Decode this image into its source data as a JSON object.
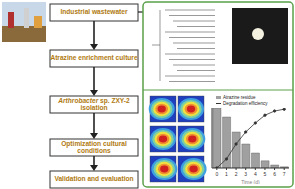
{
  "flow": {
    "steps": [
      {
        "text": "Industrial wastewater"
      },
      {
        "text": "Atrazine enrichment culture"
      },
      {
        "italic": "Arthrobacter",
        "text": " sp. ZXY-2 isolation"
      },
      {
        "text": "Optimization cultural conditions"
      },
      {
        "text": "Validation and evaluation"
      }
    ]
  },
  "chart_data": {
    "type": "bar",
    "x_label": "Time (d)",
    "categories": [
      "0",
      "1",
      "2",
      "3",
      "4",
      "5",
      "6",
      "7"
    ],
    "series": [
      {
        "name": "Atrazine residue",
        "type": "bar",
        "color": "#a0a0a0",
        "values": [
          100,
          85,
          60,
          40,
          25,
          12,
          5,
          2
        ]
      },
      {
        "name": "Degradation efficiency",
        "type": "line",
        "color": "#333333",
        "marker": "square",
        "values": [
          0,
          15,
          40,
          60,
          75,
          88,
          95,
          98
        ]
      }
    ],
    "ylim": [
      0,
      100
    ],
    "tick_labels": "x",
    "legend": "upper right"
  }
}
